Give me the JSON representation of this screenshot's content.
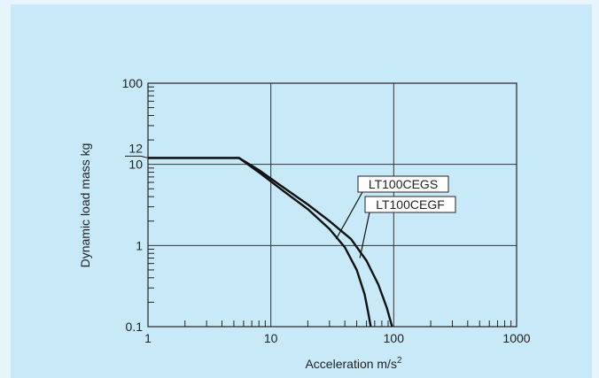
{
  "chart_data": {
    "type": "line",
    "title": "",
    "xlabel": "Acceleration m/s",
    "xlabel_sup": "2",
    "ylabel": "Dynamic load mass kg",
    "x_scale": "log",
    "y_scale": "log",
    "xlim": [
      1,
      1000
    ],
    "ylim": [
      0.1,
      100
    ],
    "grid": true,
    "x_ticks": [
      {
        "value": 1,
        "label": "1"
      },
      {
        "value": 10,
        "label": "10"
      },
      {
        "value": 100,
        "label": "100"
      },
      {
        "value": 1000,
        "label": "1000"
      }
    ],
    "y_ticks": [
      {
        "value": 0.1,
        "label": "0.1"
      },
      {
        "value": 1,
        "label": "1"
      },
      {
        "value": 10,
        "label": "10"
      },
      {
        "value": 100,
        "label": "100"
      }
    ],
    "y_annotation": {
      "value": 12,
      "label": "12"
    },
    "series": [
      {
        "name": "LT100CEGS",
        "x": [
          1,
          5.5,
          8,
          12,
          20,
          30,
          40,
          50,
          58,
          62,
          65
        ],
        "y": [
          12,
          12,
          8,
          5,
          2.8,
          1.6,
          0.95,
          0.5,
          0.25,
          0.15,
          0.1
        ]
      },
      {
        "name": "LT100CEGF",
        "x": [
          1,
          5.5,
          8,
          12,
          20,
          30,
          45,
          60,
          75,
          88,
          97
        ],
        "y": [
          12,
          12,
          8.5,
          5.5,
          3.2,
          2.0,
          1.2,
          0.65,
          0.33,
          0.17,
          0.1
        ]
      }
    ],
    "legend_labels": [
      {
        "series": "LT100CEGS",
        "box": "top",
        "leader_to": {
          "x": 34,
          "y": 1.2
        }
      },
      {
        "series": "LT100CEGF",
        "box": "bottom",
        "leader_to": {
          "x": 53,
          "y": 0.7
        }
      }
    ]
  }
}
